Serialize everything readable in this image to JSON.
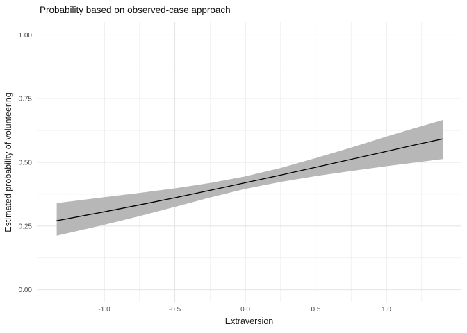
{
  "chart_data": {
    "type": "line",
    "title": "Probability based on observed-case approach",
    "xlabel": "Extraversion",
    "ylabel": "Estimated probability of volunteering",
    "xlim": [
      -1.478,
      1.532
    ],
    "ylim": [
      -0.05,
      1.05
    ],
    "x_major_ticks": [
      -1.0,
      -0.5,
      0.0,
      0.5,
      1.0
    ],
    "x_tick_labels": [
      "-1.0",
      "-0.5",
      "0.0",
      "0.5",
      "1.0"
    ],
    "x_minor_ticks": [
      -1.25,
      -0.75,
      -0.25,
      0.25,
      0.75,
      1.25
    ],
    "y_major_ticks": [
      0.0,
      0.25,
      0.5,
      0.75,
      1.0
    ],
    "y_tick_labels": [
      "0.00",
      "0.25",
      "0.50",
      "0.75",
      "1.00"
    ],
    "y_minor_ticks": [
      0.125,
      0.375,
      0.625,
      0.875
    ],
    "grid": "major+minor",
    "legend": "none",
    "series": [
      {
        "name": "estimated-probability-fit",
        "x": [
          -1.337,
          -1.0,
          -0.75,
          -0.5,
          -0.25,
          0.0,
          0.25,
          0.5,
          0.75,
          1.0,
          1.2,
          1.4
        ],
        "fit": [
          0.271,
          0.306,
          0.333,
          0.361,
          0.39,
          0.42,
          0.45,
          0.481,
          0.512,
          0.543,
          0.568,
          0.592
        ],
        "ci_lower": [
          0.212,
          0.255,
          0.289,
          0.325,
          0.362,
          0.396,
          0.423,
          0.446,
          0.466,
          0.485,
          0.499,
          0.513
        ],
        "ci_upper": [
          0.34,
          0.363,
          0.38,
          0.398,
          0.419,
          0.445,
          0.478,
          0.517,
          0.558,
          0.601,
          0.634,
          0.666
        ]
      }
    ],
    "colors": {
      "fit_line": "#000000",
      "ribbon": "#b7b7b7",
      "grid_major": "#e5e5e5",
      "grid_minor": "#ededed",
      "tick_text": "#4d4d4d",
      "title_text": "#0d0d0d",
      "background": "#ffffff"
    }
  }
}
